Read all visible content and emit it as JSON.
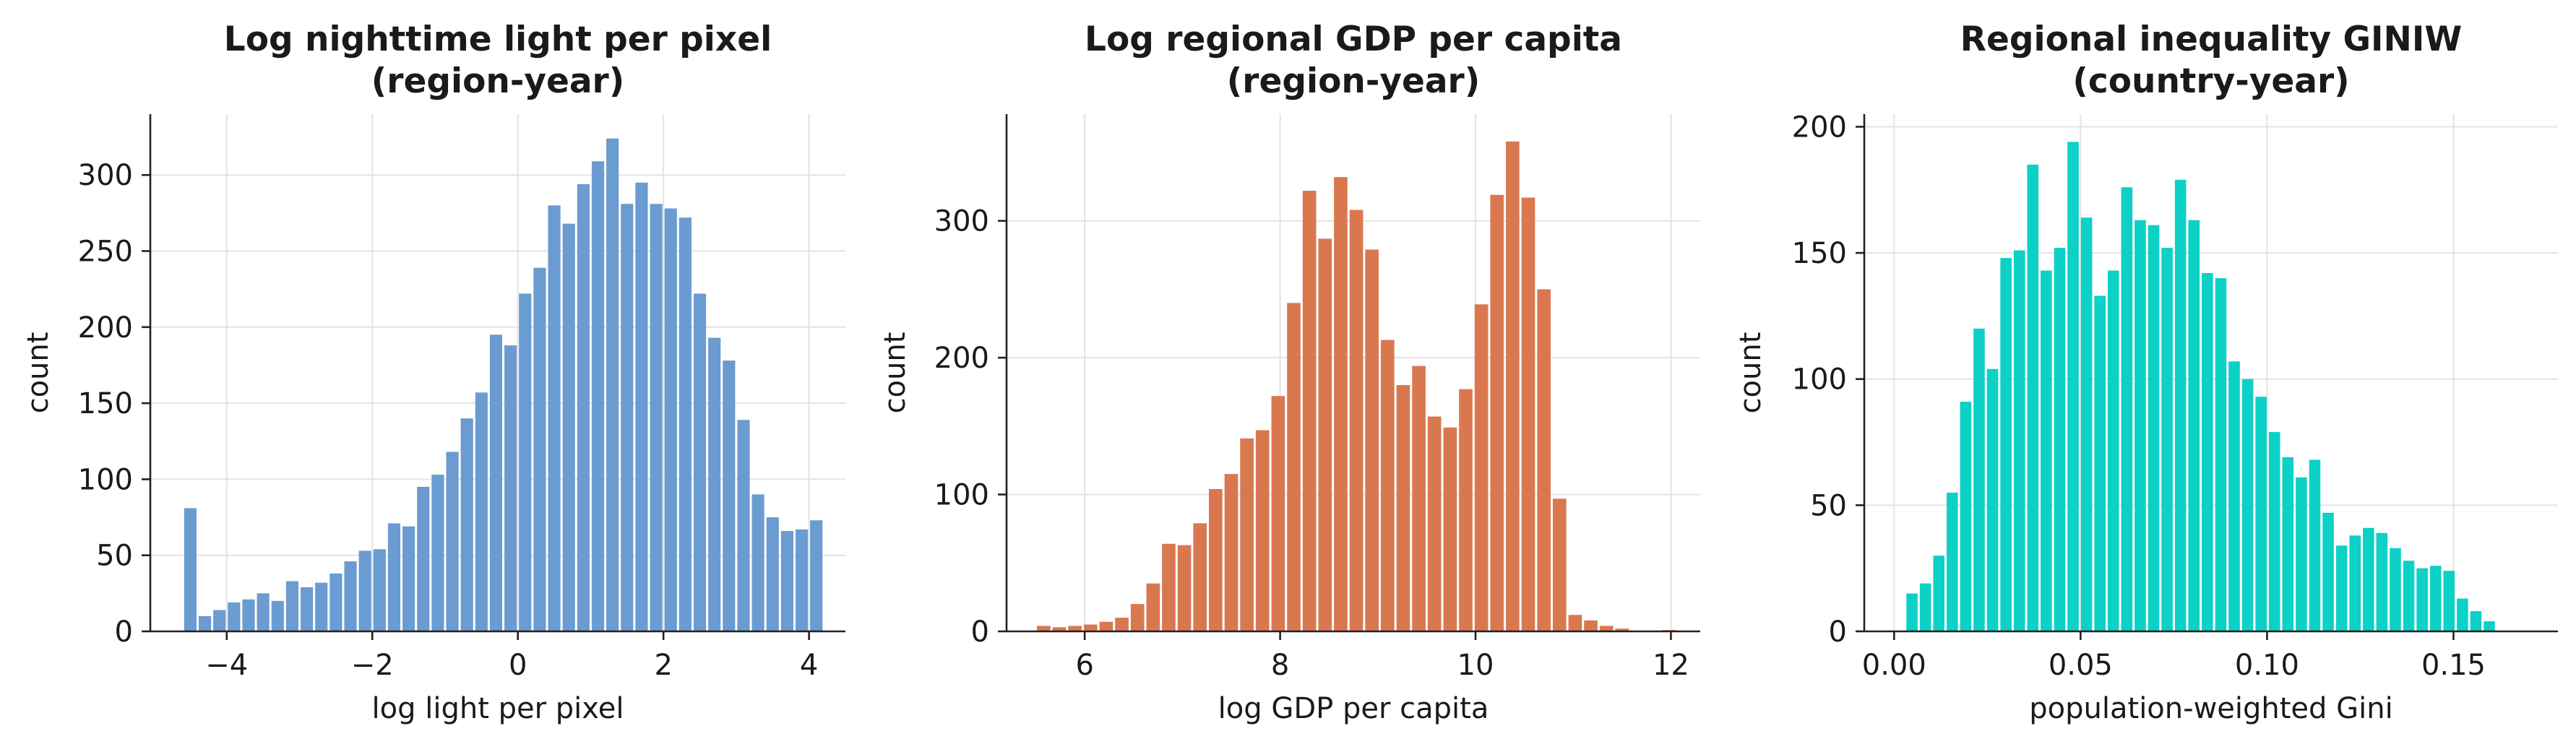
{
  "chart_data": [
    {
      "type": "bar",
      "title": "Log nighttime light per pixel\n(region-year)",
      "xlabel": "log light per pixel",
      "ylabel": "count",
      "color": "#6a9bd1",
      "grid": true,
      "xlim": [
        -5.05,
        4.5
      ],
      "ylim": [
        0,
        340
      ],
      "xticks": [
        -4,
        -2,
        0,
        2,
        4
      ],
      "yticks": [
        0,
        50,
        100,
        150,
        200,
        250,
        300
      ],
      "bin_width": 0.2,
      "bins_x": [
        -4.6,
        -4.4,
        -4.2,
        -4.0,
        -3.8,
        -3.6,
        -3.4,
        -3.2,
        -3.0,
        -2.8,
        -2.6,
        -2.4,
        -2.2,
        -2.0,
        -1.8,
        -1.6,
        -1.4,
        -1.2,
        -1.0,
        -0.8,
        -0.6,
        -0.4,
        -0.2,
        0.0,
        0.2,
        0.4,
        0.6,
        0.8,
        1.0,
        1.2,
        1.4,
        1.6,
        1.8,
        2.0,
        2.2,
        2.4,
        2.6,
        2.8,
        3.0,
        3.2,
        3.4,
        3.6,
        3.8,
        4.0
      ],
      "values": [
        81,
        10,
        14,
        19,
        21,
        25,
        20,
        33,
        29,
        32,
        38,
        46,
        53,
        54,
        71,
        69,
        95,
        103,
        118,
        140,
        157,
        195,
        188,
        222,
        239,
        280,
        268,
        294,
        309,
        324,
        281,
        295,
        281,
        278,
        272,
        222,
        193,
        178,
        139,
        90,
        75,
        66,
        67,
        73
      ]
    },
    {
      "type": "bar",
      "title": "Log regional GDP per capita\n(region-year)",
      "xlabel": "log GDP per capita",
      "ylabel": "count",
      "color": "#d9784f",
      "grid": true,
      "xlim": [
        5.2,
        12.3
      ],
      "ylim": [
        0,
        378
      ],
      "xticks": [
        6,
        8,
        10,
        12
      ],
      "yticks": [
        0,
        100,
        200,
        300
      ],
      "bin_width": 0.16,
      "bins_x": [
        5.5,
        5.66,
        5.82,
        5.98,
        6.14,
        6.3,
        6.46,
        6.62,
        6.78,
        6.94,
        7.1,
        7.26,
        7.42,
        7.58,
        7.74,
        7.9,
        8.06,
        8.22,
        8.38,
        8.54,
        8.7,
        8.86,
        9.02,
        9.18,
        9.34,
        9.5,
        9.66,
        9.82,
        9.98,
        10.14,
        10.3,
        10.46,
        10.62,
        10.78,
        10.94,
        11.1,
        11.26,
        11.42,
        11.58,
        11.74,
        11.9
      ],
      "values": [
        4,
        3,
        4,
        5,
        7,
        10,
        20,
        35,
        64,
        63,
        79,
        104,
        115,
        141,
        147,
        172,
        240,
        322,
        287,
        332,
        308,
        279,
        213,
        180,
        194,
        157,
        149,
        177,
        239,
        319,
        358,
        317,
        250,
        97,
        12,
        8,
        4,
        2,
        0,
        0,
        1
      ]
    },
    {
      "type": "bar",
      "title": "Regional inequality GINIW\n(country-year)",
      "xlabel": "population-weighted Gini",
      "ylabel": "count",
      "color": "#0bd1c6",
      "grid": true,
      "xlim": [
        -0.008,
        0.178
      ],
      "ylim": [
        0,
        205
      ],
      "xticks": [
        0.0,
        0.05,
        0.1,
        0.15
      ],
      "xtick_labels": [
        "0.00",
        "0.05",
        "0.10",
        "0.15"
      ],
      "yticks": [
        0,
        50,
        100,
        150,
        200
      ],
      "bin_width": 0.0036,
      "bins_x": [
        0.003,
        0.0066,
        0.0102,
        0.0138,
        0.0174,
        0.021,
        0.0246,
        0.0282,
        0.0318,
        0.0354,
        0.039,
        0.0426,
        0.0462,
        0.0498,
        0.0534,
        0.057,
        0.0606,
        0.0642,
        0.0678,
        0.0714,
        0.075,
        0.0786,
        0.0822,
        0.0858,
        0.0894,
        0.093,
        0.0966,
        0.1002,
        0.1038,
        0.1074,
        0.111,
        0.1146,
        0.1182,
        0.1218,
        0.1254,
        0.129,
        0.1326,
        0.1362,
        0.1398,
        0.1434,
        0.147,
        0.1506,
        0.1542,
        0.1578
      ],
      "values": [
        15,
        19,
        30,
        55,
        91,
        120,
        104,
        148,
        151,
        185,
        143,
        152,
        194,
        164,
        133,
        143,
        176,
        163,
        161,
        152,
        179,
        163,
        142,
        140,
        107,
        100,
        93,
        79,
        69,
        61,
        68,
        47,
        34,
        38,
        41,
        39,
        33,
        28,
        25,
        26,
        24,
        13,
        8,
        4
      ]
    }
  ]
}
